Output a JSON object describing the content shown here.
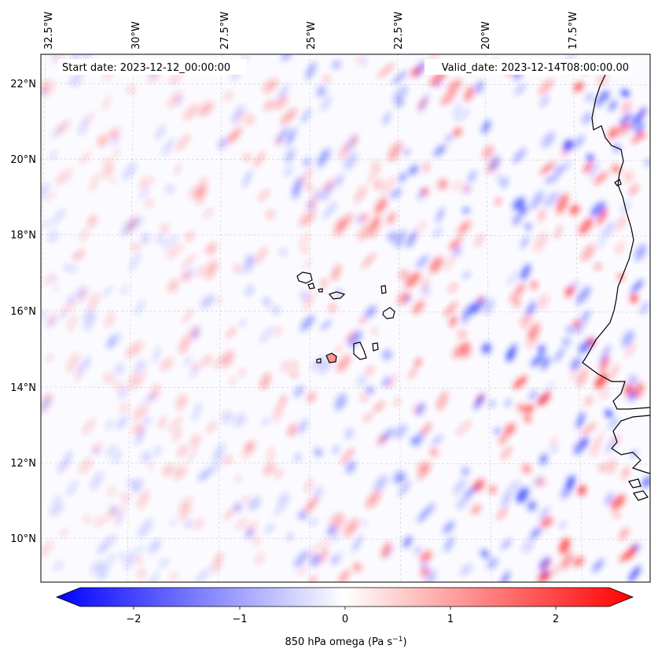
{
  "map": {
    "start_label": "Start date: 2023-12-12_00:00:00",
    "valid_label": "Valid_date: 2023-12-14T08:00:00.00",
    "lon_ticks": [
      "32.5°W",
      "30°W",
      "27.5°W",
      "25°W",
      "22.5°W",
      "20°W",
      "17.5°W"
    ],
    "lat_ticks": [
      "22°N",
      "20°N",
      "18°N",
      "16°N",
      "14°N",
      "12°N",
      "10°N"
    ],
    "colorbar": {
      "ticks": [
        "−2",
        "−1",
        "0",
        "1",
        "2"
      ],
      "label_main": "850 hPa omega (Pa s",
      "label_sup": "−1",
      "label_end": ")",
      "min_color": "#0000ff",
      "mid_color": "#ffffff",
      "max_color": "#ff0000"
    }
  }
}
